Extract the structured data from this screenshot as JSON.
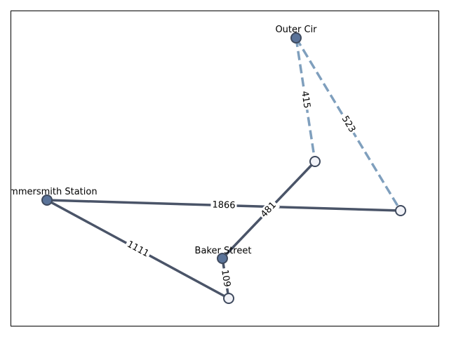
{
  "colors": {
    "solid_edge": "#4a5468",
    "dashed_edge": "#7f9fbd",
    "node_filled": "#5a7399",
    "node_open": "#f2f3f8",
    "node_stroke": "#3f4a5e",
    "frame": "#000000"
  },
  "nodes": [
    {
      "id": "outer_cir",
      "label": "Outer Cir",
      "style": "filled"
    },
    {
      "id": "n_right_mid",
      "label": "",
      "style": "open"
    },
    {
      "id": "n_far_right",
      "label": "",
      "style": "open"
    },
    {
      "id": "hammersmith",
      "label": "Hammersmith Station",
      "style": "filled"
    },
    {
      "id": "baker_street",
      "label": "Baker Street",
      "style": "filled"
    },
    {
      "id": "n_bottom",
      "label": "",
      "style": "open"
    }
  ],
  "edges": [
    {
      "from": "outer_cir",
      "to": "n_right_mid",
      "weight": "415",
      "style": "dashed"
    },
    {
      "from": "outer_cir",
      "to": "n_far_right",
      "weight": "523",
      "style": "dashed"
    },
    {
      "from": "hammersmith",
      "to": "n_far_right",
      "weight": "1866",
      "style": "solid"
    },
    {
      "from": "baker_street",
      "to": "n_right_mid",
      "weight": "481",
      "style": "solid"
    },
    {
      "from": "hammersmith",
      "to": "n_bottom",
      "weight": "1111",
      "style": "solid"
    },
    {
      "from": "baker_street",
      "to": "n_bottom",
      "weight": "109",
      "style": "solid"
    }
  ]
}
